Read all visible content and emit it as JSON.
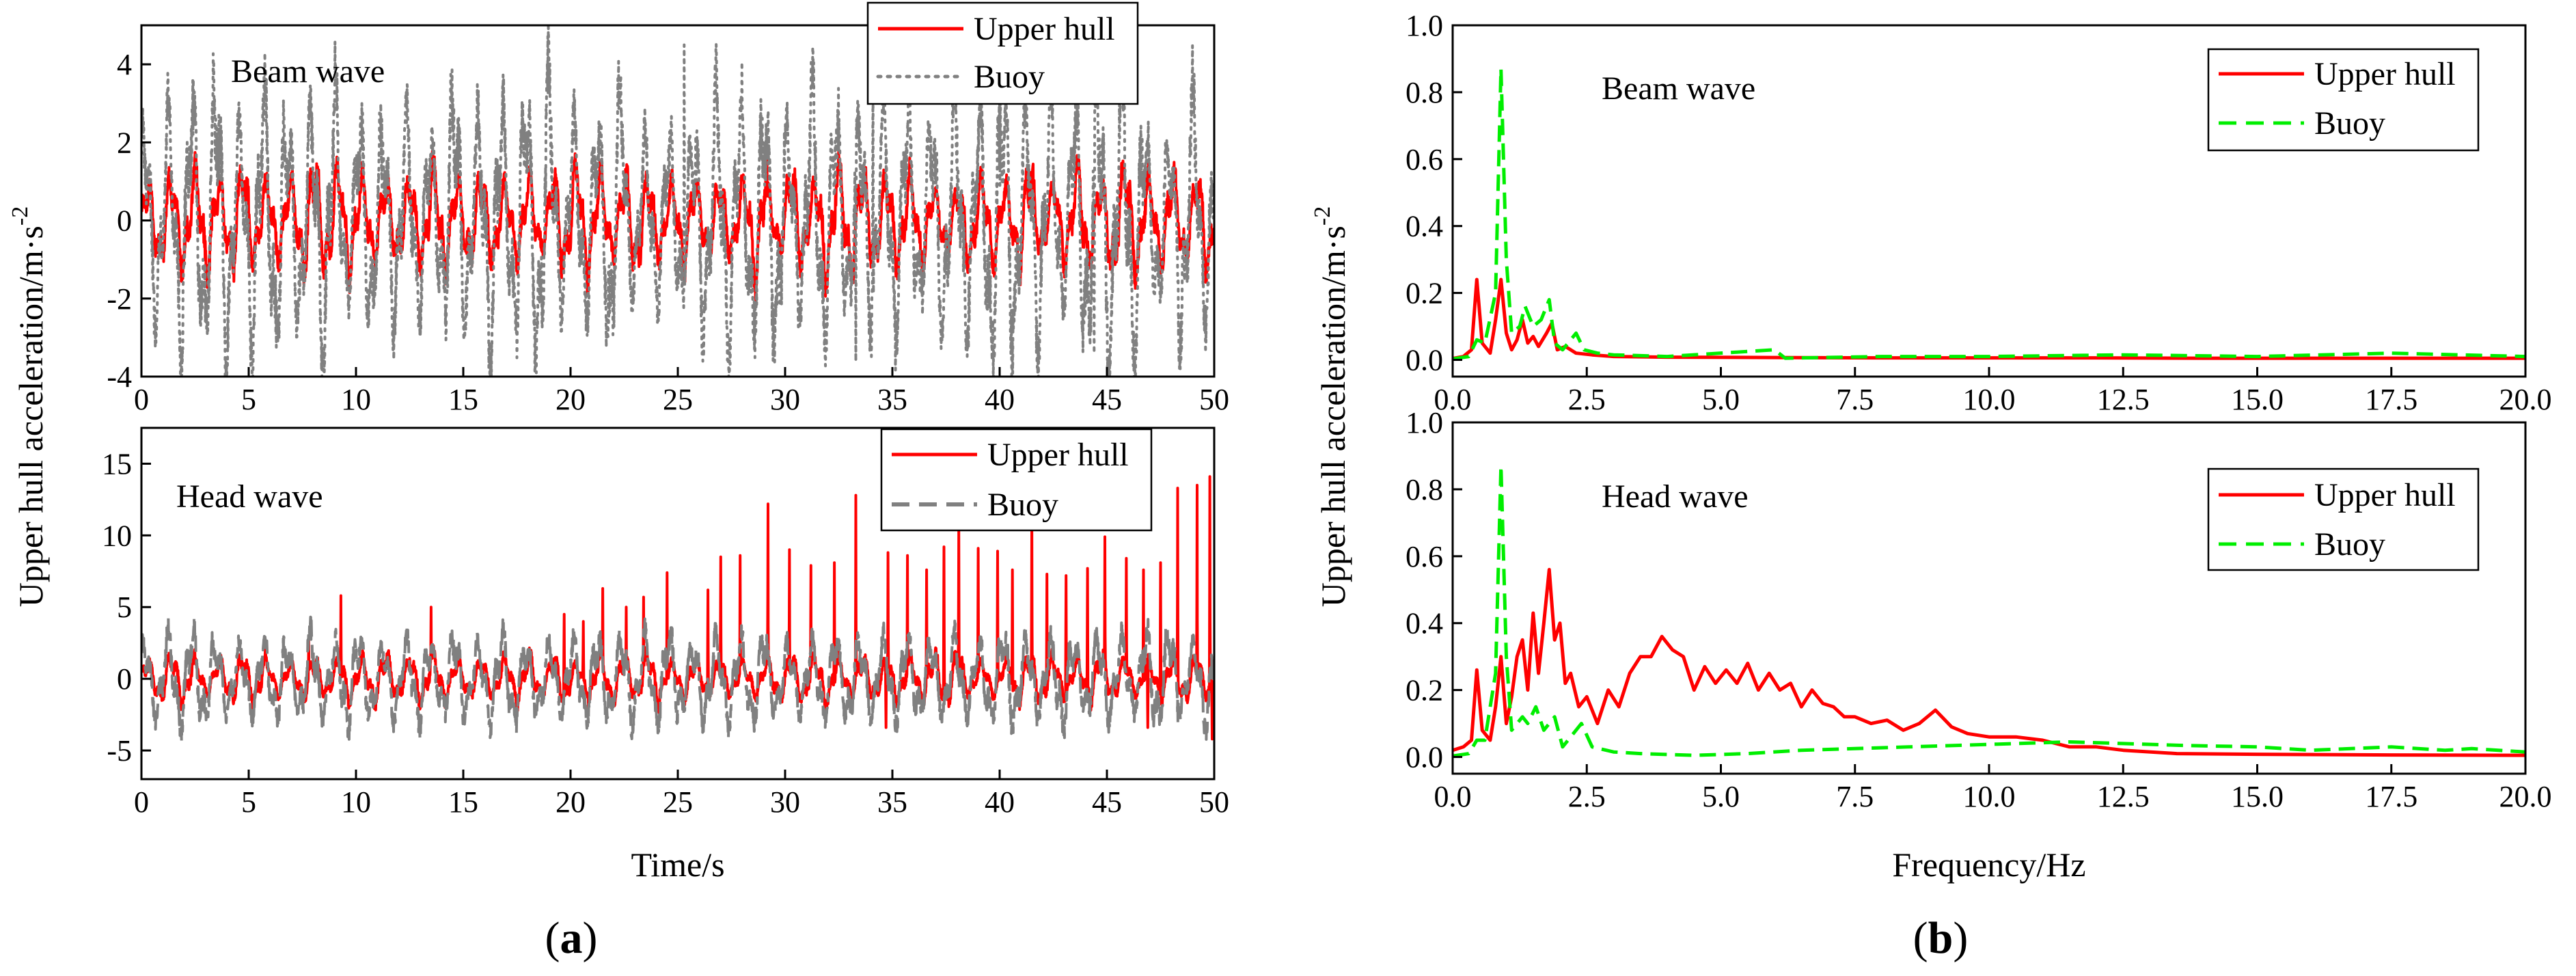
{
  "colors": {
    "upper_hull": "#ff0000",
    "buoy_gray": "#808080",
    "buoy_green": "#00ee00",
    "axis": "#000000"
  },
  "panel_a_label": "a",
  "panel_b_label": "b",
  "chart_data": [
    {
      "id": "a_beam",
      "type": "line",
      "title": "Beam wave",
      "xlim": [
        0,
        50
      ],
      "ylim": [
        -4,
        5
      ],
      "xticks": [
        "0",
        "5",
        "10",
        "15",
        "20",
        "25",
        "30",
        "35",
        "40",
        "45",
        "50"
      ],
      "xtick_values": [
        0,
        5,
        10,
        15,
        20,
        25,
        30,
        35,
        40,
        45,
        50
      ],
      "yticks": [
        "-4",
        "-2",
        "0",
        "2",
        "4"
      ],
      "ytick_values": [
        -4,
        -2,
        0,
        2,
        4
      ],
      "xlabel": "",
      "ylabel": "",
      "legend": {
        "position": "top-right",
        "entries": [
          "Upper hull",
          "Buoy"
        ]
      },
      "series": [
        {
          "name": "Upper hull",
          "style": "solid",
          "color": "#ff0000",
          "peak_frequency_hz": 0.9,
          "amplitude_range": [
            0.6,
            1.2
          ],
          "peaks": []
        },
        {
          "name": "Buoy",
          "style": "dotted",
          "color": "#808080",
          "peak_frequency_hz": 0.9,
          "amplitude_range": [
            1.5,
            3.0
          ],
          "peaks": [
            [
              25.3,
              4.5
            ],
            [
              33.3,
              -3.6
            ],
            [
              34.1,
              3.5
            ],
            [
              44.4,
              -3.4
            ],
            [
              11.2,
              2.6
            ],
            [
              40.0,
              3.0
            ]
          ]
        }
      ]
    },
    {
      "id": "a_head",
      "type": "line",
      "title": "Head wave",
      "xlim": [
        0,
        50
      ],
      "ylim": [
        -7,
        17.5
      ],
      "xticks": [
        "0",
        "5",
        "10",
        "15",
        "20",
        "25",
        "30",
        "35",
        "40",
        "45",
        "50"
      ],
      "xtick_values": [
        0,
        5,
        10,
        15,
        20,
        25,
        30,
        35,
        40,
        45,
        50
      ],
      "yticks": [
        "-5",
        "0",
        "5",
        "10",
        "15"
      ],
      "ytick_values": [
        -5,
        0,
        5,
        10,
        15
      ],
      "xlabel": "Time/s",
      "ylabel": "",
      "legend": {
        "position": "top-right",
        "entries": [
          "Upper hull",
          "Buoy"
        ]
      },
      "series": [
        {
          "name": "Upper hull",
          "style": "solid",
          "color": "#ff0000",
          "peak_frequency_hz": 0.9,
          "amplitude_range": [
            0.8,
            1.5
          ],
          "peaks": [
            [
              7.8,
              2.9
            ],
            [
              9.3,
              5.8
            ],
            [
              13.5,
              5.0
            ],
            [
              19.7,
              4.5
            ],
            [
              20.6,
              4.0
            ],
            [
              21.5,
              6.3
            ],
            [
              22.6,
              5.0
            ],
            [
              23.4,
              5.7
            ],
            [
              24.5,
              7.4
            ],
            [
              26.4,
              6.2
            ],
            [
              27.0,
              8.5
            ],
            [
              27.9,
              8.6
            ],
            [
              29.2,
              12.2
            ],
            [
              30.2,
              9.0
            ],
            [
              31.2,
              7.9
            ],
            [
              32.3,
              8.1
            ],
            [
              33.3,
              12.8
            ],
            [
              34.8,
              8.8
            ],
            [
              35.7,
              8.6
            ],
            [
              36.6,
              7.6
            ],
            [
              37.4,
              9.2
            ],
            [
              38.1,
              10.7
            ],
            [
              39.0,
              9.1
            ],
            [
              39.9,
              8.9
            ],
            [
              40.6,
              7.6
            ],
            [
              41.5,
              11.5
            ],
            [
              42.2,
              7.3
            ],
            [
              43.1,
              7.2
            ],
            [
              44.1,
              7.7
            ],
            [
              44.9,
              9.9
            ],
            [
              45.9,
              8.4
            ],
            [
              46.7,
              7.6
            ],
            [
              47.5,
              8.1
            ],
            [
              48.3,
              13.3
            ],
            [
              49.2,
              13.5
            ],
            [
              49.8,
              14.1
            ],
            [
              46.9,
              -3.4
            ],
            [
              49.9,
              -4.2
            ],
            [
              34.7,
              -3.4
            ]
          ]
        },
        {
          "name": "Buoy",
          "style": "dashed",
          "color": "#808080",
          "peak_frequency_hz": 0.9,
          "amplitude_range": [
            1.8,
            2.8
          ],
          "peaks": []
        }
      ]
    },
    {
      "id": "b_beam",
      "type": "line",
      "title": "Beam wave",
      "xlim": [
        0,
        20
      ],
      "ylim": [
        -0.05,
        1.0
      ],
      "xticks": [
        "0.0",
        "2.5",
        "5.0",
        "7.5",
        "10.0",
        "12.5",
        "15.0",
        "17.5",
        "20.0"
      ],
      "xtick_values": [
        0,
        2.5,
        5,
        7.5,
        10,
        12.5,
        15,
        17.5,
        20
      ],
      "yticks": [
        "0.0",
        "0.2",
        "0.4",
        "0.6",
        "0.8",
        "1.0"
      ],
      "ytick_values": [
        0,
        0.2,
        0.4,
        0.6,
        0.8,
        1.0
      ],
      "xlabel": "",
      "ylabel": "",
      "legend": {
        "position": "top-right",
        "entries": [
          "Upper hull",
          "Buoy"
        ]
      },
      "series": [
        {
          "name": "Upper hull",
          "style": "solid",
          "color": "#ff0000",
          "points": [
            [
              0,
              0.004
            ],
            [
              0.2,
              0.01
            ],
            [
              0.35,
              0.03
            ],
            [
              0.45,
              0.24
            ],
            [
              0.55,
              0.05
            ],
            [
              0.7,
              0.02
            ],
            [
              0.8,
              0.12
            ],
            [
              0.9,
              0.24
            ],
            [
              1.0,
              0.08
            ],
            [
              1.1,
              0.03
            ],
            [
              1.2,
              0.06
            ],
            [
              1.3,
              0.12
            ],
            [
              1.4,
              0.05
            ],
            [
              1.5,
              0.07
            ],
            [
              1.6,
              0.04
            ],
            [
              1.75,
              0.08
            ],
            [
              1.85,
              0.11
            ],
            [
              1.95,
              0.03
            ],
            [
              2.1,
              0.04
            ],
            [
              2.3,
              0.02
            ],
            [
              2.6,
              0.015
            ],
            [
              3.0,
              0.01
            ],
            [
              4.0,
              0.008
            ],
            [
              6.0,
              0.007
            ],
            [
              8.0,
              0.006
            ],
            [
              10.0,
              0.006
            ],
            [
              12.0,
              0.006
            ],
            [
              14.0,
              0.005
            ],
            [
              16.0,
              0.005
            ],
            [
              18.0,
              0.005
            ],
            [
              20.0,
              0.005
            ]
          ]
        },
        {
          "name": "Buoy",
          "style": "dashed",
          "color": "#00ee00",
          "points": [
            [
              0,
              0.003
            ],
            [
              0.3,
              0.01
            ],
            [
              0.45,
              0.06
            ],
            [
              0.6,
              0.05
            ],
            [
              0.8,
              0.2
            ],
            [
              0.9,
              0.87
            ],
            [
              1.0,
              0.3
            ],
            [
              1.1,
              0.08
            ],
            [
              1.25,
              0.1
            ],
            [
              1.35,
              0.16
            ],
            [
              1.5,
              0.1
            ],
            [
              1.65,
              0.12
            ],
            [
              1.8,
              0.18
            ],
            [
              1.9,
              0.05
            ],
            [
              2.05,
              0.03
            ],
            [
              2.2,
              0.06
            ],
            [
              2.3,
              0.08
            ],
            [
              2.45,
              0.03
            ],
            [
              2.7,
              0.02
            ],
            [
              3.0,
              0.015
            ],
            [
              4.0,
              0.01
            ],
            [
              6.0,
              0.03
            ],
            [
              6.2,
              0.005
            ],
            [
              8.0,
              0.01
            ],
            [
              10.0,
              0.01
            ],
            [
              12.5,
              0.015
            ],
            [
              15.0,
              0.01
            ],
            [
              17.5,
              0.02
            ],
            [
              20.0,
              0.01
            ]
          ]
        }
      ]
    },
    {
      "id": "b_head",
      "type": "line",
      "title": "Head wave",
      "xlim": [
        0,
        20
      ],
      "ylim": [
        -0.05,
        1.0
      ],
      "xticks": [
        "0.0",
        "2.5",
        "5.0",
        "7.5",
        "10.0",
        "12.5",
        "15.0",
        "17.5",
        "20.0"
      ],
      "xtick_values": [
        0,
        2.5,
        5,
        7.5,
        10,
        12.5,
        15,
        17.5,
        20
      ],
      "yticks": [
        "0.0",
        "0.2",
        "0.4",
        "0.6",
        "0.8",
        "1.0"
      ],
      "ytick_values": [
        0,
        0.2,
        0.4,
        0.6,
        0.8,
        1.0
      ],
      "xlabel": "Frequency/Hz",
      "ylabel": "",
      "legend": {
        "position": "top-right",
        "entries": [
          "Upper hull",
          "Buoy"
        ]
      },
      "series": [
        {
          "name": "Upper hull",
          "style": "solid",
          "color": "#ff0000",
          "points": [
            [
              0,
              0.02
            ],
            [
              0.2,
              0.03
            ],
            [
              0.35,
              0.05
            ],
            [
              0.45,
              0.26
            ],
            [
              0.55,
              0.08
            ],
            [
              0.7,
              0.05
            ],
            [
              0.8,
              0.15
            ],
            [
              0.9,
              0.3
            ],
            [
              1.0,
              0.1
            ],
            [
              1.1,
              0.18
            ],
            [
              1.2,
              0.3
            ],
            [
              1.3,
              0.35
            ],
            [
              1.4,
              0.2
            ],
            [
              1.5,
              0.43
            ],
            [
              1.6,
              0.25
            ],
            [
              1.7,
              0.4
            ],
            [
              1.8,
              0.56
            ],
            [
              1.9,
              0.35
            ],
            [
              2.0,
              0.4
            ],
            [
              2.1,
              0.22
            ],
            [
              2.2,
              0.25
            ],
            [
              2.35,
              0.15
            ],
            [
              2.5,
              0.18
            ],
            [
              2.7,
              0.1
            ],
            [
              2.9,
              0.2
            ],
            [
              3.1,
              0.15
            ],
            [
              3.3,
              0.25
            ],
            [
              3.5,
              0.3
            ],
            [
              3.7,
              0.3
            ],
            [
              3.9,
              0.36
            ],
            [
              4.1,
              0.32
            ],
            [
              4.3,
              0.3
            ],
            [
              4.5,
              0.2
            ],
            [
              4.7,
              0.27
            ],
            [
              4.9,
              0.22
            ],
            [
              5.1,
              0.26
            ],
            [
              5.3,
              0.22
            ],
            [
              5.5,
              0.28
            ],
            [
              5.7,
              0.2
            ],
            [
              5.9,
              0.25
            ],
            [
              6.1,
              0.2
            ],
            [
              6.3,
              0.22
            ],
            [
              6.5,
              0.15
            ],
            [
              6.7,
              0.2
            ],
            [
              6.9,
              0.16
            ],
            [
              7.1,
              0.15
            ],
            [
              7.3,
              0.12
            ],
            [
              7.5,
              0.12
            ],
            [
              7.8,
              0.1
            ],
            [
              8.1,
              0.11
            ],
            [
              8.4,
              0.08
            ],
            [
              8.7,
              0.1
            ],
            [
              9.0,
              0.14
            ],
            [
              9.3,
              0.09
            ],
            [
              9.6,
              0.07
            ],
            [
              10.0,
              0.06
            ],
            [
              10.5,
              0.06
            ],
            [
              11.0,
              0.05
            ],
            [
              11.5,
              0.03
            ],
            [
              12.0,
              0.03
            ],
            [
              12.5,
              0.02
            ],
            [
              13.5,
              0.01
            ],
            [
              15.0,
              0.008
            ],
            [
              17.5,
              0.006
            ],
            [
              20.0,
              0.005
            ]
          ]
        },
        {
          "name": "Buoy",
          "style": "dashed",
          "color": "#00ee00",
          "points": [
            [
              0,
              0.003
            ],
            [
              0.3,
              0.01
            ],
            [
              0.45,
              0.05
            ],
            [
              0.6,
              0.05
            ],
            [
              0.8,
              0.25
            ],
            [
              0.9,
              0.87
            ],
            [
              1.0,
              0.3
            ],
            [
              1.1,
              0.08
            ],
            [
              1.3,
              0.12
            ],
            [
              1.4,
              0.1
            ],
            [
              1.55,
              0.15
            ],
            [
              1.7,
              0.08
            ],
            [
              1.9,
              0.12
            ],
            [
              2.05,
              0.03
            ],
            [
              2.25,
              0.07
            ],
            [
              2.4,
              0.1
            ],
            [
              2.6,
              0.03
            ],
            [
              3.0,
              0.015
            ],
            [
              3.5,
              0.01
            ],
            [
              4.5,
              0.005
            ],
            [
              5.5,
              0.01
            ],
            [
              6.5,
              0.02
            ],
            [
              7.5,
              0.025
            ],
            [
              8.5,
              0.03
            ],
            [
              9.5,
              0.035
            ],
            [
              10.5,
              0.04
            ],
            [
              11.5,
              0.045
            ],
            [
              12.5,
              0.04
            ],
            [
              13.5,
              0.035
            ],
            [
              15.0,
              0.03
            ],
            [
              16.0,
              0.02
            ],
            [
              17.5,
              0.03
            ],
            [
              18.5,
              0.02
            ],
            [
              19.0,
              0.025
            ],
            [
              20.0,
              0.015
            ]
          ]
        }
      ]
    }
  ],
  "shared_ylabel": {
    "text": "Upper hull acceleration/m·s",
    "superscript": "-2"
  }
}
